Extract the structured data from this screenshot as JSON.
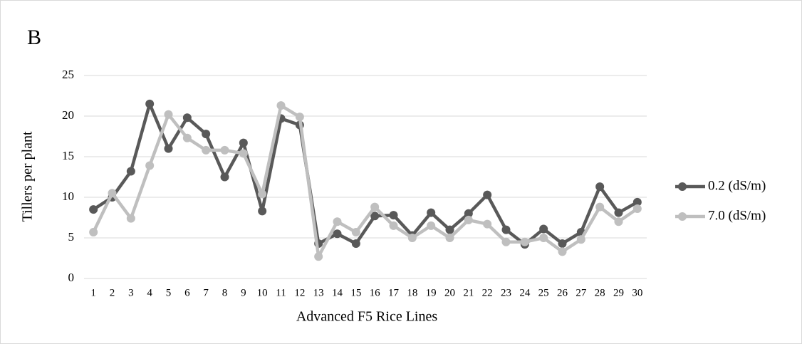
{
  "chart_data": {
    "type": "line",
    "title": "B",
    "x_label": "Advanced F5 Rice Lines",
    "y_label": "Tillers per plant",
    "categories": [
      "1",
      "2",
      "3",
      "4",
      "5",
      "6",
      "7",
      "8",
      "9",
      "10",
      "11",
      "12",
      "13",
      "14",
      "15",
      "16",
      "17",
      "18",
      "19",
      "20",
      "21",
      "22",
      "23",
      "24",
      "25",
      "26",
      "27",
      "28",
      "29",
      "30"
    ],
    "series": [
      {
        "name": "0.2 (dS/m)",
        "color": "#595959",
        "values": [
          8.5,
          10.0,
          13.2,
          21.5,
          16.0,
          19.8,
          17.8,
          12.5,
          16.7,
          8.3,
          19.7,
          18.9,
          4.3,
          5.5,
          4.3,
          7.7,
          7.8,
          5.3,
          8.1,
          6.0,
          8.0,
          10.3,
          6.0,
          4.2,
          6.1,
          4.3,
          5.7,
          11.3,
          8.1,
          9.4
        ]
      },
      {
        "name": "7.0 (dS/m)",
        "color": "#bfbfbf",
        "values": [
          5.7,
          10.5,
          7.4,
          13.9,
          20.2,
          17.3,
          15.8,
          15.8,
          15.4,
          10.4,
          21.3,
          19.9,
          2.7,
          7.0,
          5.7,
          8.8,
          6.5,
          5.0,
          6.5,
          5.0,
          7.2,
          6.7,
          4.5,
          4.5,
          5.0,
          3.3,
          4.8,
          8.8,
          7.0,
          8.6
        ]
      }
    ],
    "ylim": [
      0,
      25
    ],
    "yticks": [
      0,
      5,
      10,
      15,
      20,
      25
    ],
    "grid": true,
    "legend": "right"
  }
}
